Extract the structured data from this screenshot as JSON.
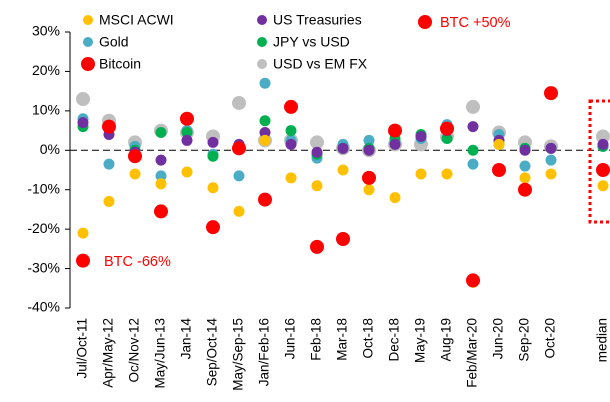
{
  "chart_data": {
    "type": "scatter",
    "categories": [
      "Jul/Oct-11",
      "Apr/May-12",
      "Oc/Nov-12",
      "May/Jun-13",
      "Jan-14",
      "Sep/Oct-14",
      "May/Sep-15",
      "Jan/Feb-16",
      "Jun-16",
      "Feb-18",
      "Mar-18",
      "Oct-18",
      "Dec-18",
      "May-19",
      "Aug-19",
      "Feb/Mar-20",
      "Jun-20",
      "Sep-20",
      "Oct-20",
      null,
      "median"
    ],
    "series": [
      {
        "name": "USD vs EM FX",
        "color": "#bfbfbf",
        "values": [
          13,
          7.5,
          2,
          5,
          4.5,
          3.5,
          12,
          2.5,
          2.5,
          2,
          0.5,
          0,
          1.5,
          1.5,
          3.5,
          11,
          4.5,
          2,
          1,
          null,
          3.5
        ]
      },
      {
        "name": "Gold",
        "color": "#4bacc6",
        "values": [
          8,
          -3.5,
          1,
          -6.5,
          5,
          -1,
          -6.5,
          17,
          2.5,
          -2,
          1.5,
          2.5,
          2,
          3,
          6.5,
          -3.5,
          4,
          -4,
          -2.5,
          null,
          1
        ]
      },
      {
        "name": "JPY vs USD",
        "color": "#00b050",
        "values": [
          6,
          6,
          0,
          4.5,
          4.5,
          -1.5,
          1,
          7.5,
          5,
          -1,
          0.5,
          0.5,
          3,
          4,
          3,
          0,
          1.5,
          0.5,
          0.5,
          null,
          1
        ]
      },
      {
        "name": "US Treasuries",
        "color": "#7030a0",
        "values": [
          7,
          4,
          -0.5,
          -2.5,
          2.5,
          2,
          1.5,
          4.5,
          1.5,
          -0.5,
          0.5,
          0,
          1.5,
          3.5,
          5,
          6,
          2.5,
          0,
          0.5,
          null,
          1.5
        ]
      },
      {
        "name": "MSCI ACWI",
        "color": "#ffc000",
        "values": [
          -21,
          -13,
          -6,
          -8.5,
          -5.5,
          -9.5,
          -15.5,
          2.5,
          -7,
          -9,
          -5,
          -10,
          -12,
          -6,
          -6,
          -33.5,
          1.5,
          -7,
          -6,
          null,
          -9
        ]
      },
      {
        "name": "Bitcoin",
        "color": "#ff0000",
        "values": [
          -28,
          6,
          -1.5,
          -15.5,
          8,
          -19.5,
          0.5,
          -12.5,
          11,
          -24.5,
          -22.5,
          -7,
          5,
          null,
          5.5,
          -33,
          -5,
          -10,
          14.5,
          null,
          -5
        ]
      }
    ],
    "annotations": [
      "BTC +50%",
      "BTC -66%"
    ],
    "ylim": [
      -40,
      30
    ],
    "yticks": [
      {
        "value": -40,
        "label": "-40%"
      },
      {
        "value": -30,
        "label": "-30%"
      },
      {
        "value": -20,
        "label": "-20%"
      },
      {
        "value": -10,
        "label": "-10%"
      },
      {
        "value": 0,
        "label": "0%"
      },
      {
        "value": 10,
        "label": "10%"
      },
      {
        "value": 20,
        "label": "20%"
      },
      {
        "value": 30,
        "label": "30%"
      }
    ]
  }
}
